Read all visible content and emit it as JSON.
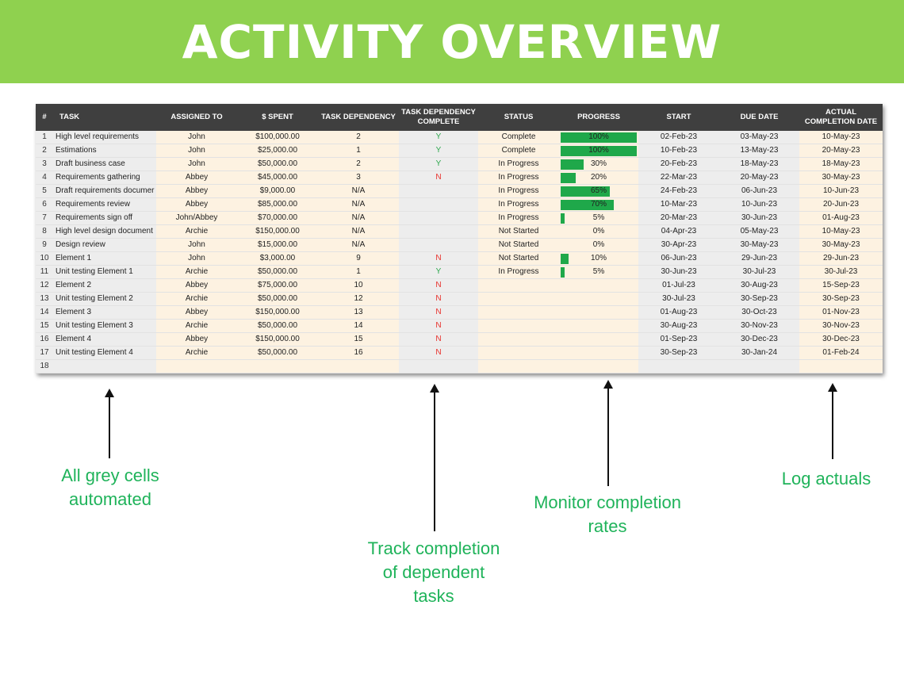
{
  "title": "ACTIVITY OVERVIEW",
  "columns": [
    "#",
    "TASK",
    "ASSIGNED TO",
    "$ SPENT",
    "TASK DEPENDENCY",
    "TASK DEPENDENCY COMPLETE",
    "STATUS",
    "PROGRESS",
    "START",
    "DUE DATE",
    "ACTUAL COMPLETION DATE"
  ],
  "rows": [
    {
      "n": "1",
      "task": "High level requirements",
      "assigned": "John",
      "spent": "$100,000.00",
      "dep": "2",
      "depc": "Y",
      "status": "Complete",
      "progress": "100%",
      "progress_value": 1.0,
      "start": "02-Feb-23",
      "due": "03-May-23",
      "actual": "10-May-23"
    },
    {
      "n": "2",
      "task": "Estimations",
      "assigned": "John",
      "spent": "$25,000.00",
      "dep": "1",
      "depc": "Y",
      "status": "Complete",
      "progress": "100%",
      "progress_value": 1.0,
      "start": "10-Feb-23",
      "due": "13-May-23",
      "actual": "20-May-23"
    },
    {
      "n": "3",
      "task": "Draft business case",
      "assigned": "John",
      "spent": "$50,000.00",
      "dep": "2",
      "depc": "Y",
      "status": "In Progress",
      "progress": "30%",
      "progress_value": 0.3,
      "start": "20-Feb-23",
      "due": "18-May-23",
      "actual": "18-May-23"
    },
    {
      "n": "4",
      "task": "Requirements gathering",
      "assigned": "Abbey",
      "spent": "$45,000.00",
      "dep": "3",
      "depc": "N",
      "status": "In Progress",
      "progress": "20%",
      "progress_value": 0.2,
      "start": "22-Mar-23",
      "due": "20-May-23",
      "actual": "30-May-23"
    },
    {
      "n": "5",
      "task": "Draft requirements documer",
      "assigned": "Abbey",
      "spent": "$9,000.00",
      "dep": "N/A",
      "depc": "",
      "status": "In Progress",
      "progress": "65%",
      "progress_value": 0.65,
      "start": "24-Feb-23",
      "due": "06-Jun-23",
      "actual": "10-Jun-23"
    },
    {
      "n": "6",
      "task": "Requirements review",
      "assigned": "Abbey",
      "spent": "$85,000.00",
      "dep": "N/A",
      "depc": "",
      "status": "In Progress",
      "progress": "70%",
      "progress_value": 0.7,
      "start": "10-Mar-23",
      "due": "10-Jun-23",
      "actual": "20-Jun-23"
    },
    {
      "n": "7",
      "task": "Requirements sign off",
      "assigned": "John/Abbey",
      "spent": "$70,000.00",
      "dep": "N/A",
      "depc": "",
      "status": "In Progress",
      "progress": "5%",
      "progress_value": 0.05,
      "start": "20-Mar-23",
      "due": "30-Jun-23",
      "actual": "01-Aug-23"
    },
    {
      "n": "8",
      "task": "High level design document",
      "assigned": "Archie",
      "spent": "$150,000.00",
      "dep": "N/A",
      "depc": "",
      "status": "Not Started",
      "progress": "0%",
      "progress_value": 0,
      "start": "04-Apr-23",
      "due": "05-May-23",
      "actual": "10-May-23"
    },
    {
      "n": "9",
      "task": "Design review",
      "assigned": "John",
      "spent": "$15,000.00",
      "dep": "N/A",
      "depc": "",
      "status": "Not Started",
      "progress": "0%",
      "progress_value": 0,
      "start": "30-Apr-23",
      "due": "30-May-23",
      "actual": "30-May-23"
    },
    {
      "n": "10",
      "task": "Element 1",
      "assigned": "John",
      "spent": "$3,000.00",
      "dep": "9",
      "depc": "N",
      "status": "Not Started",
      "progress": "10%",
      "progress_value": 0.1,
      "start": "06-Jun-23",
      "due": "29-Jun-23",
      "actual": "29-Jun-23"
    },
    {
      "n": "11",
      "task": "Unit testing Element 1",
      "assigned": "Archie",
      "spent": "$50,000.00",
      "dep": "1",
      "depc": "Y",
      "status": "In Progress",
      "progress": "5%",
      "progress_value": 0.05,
      "start": "30-Jun-23",
      "due": "30-Jul-23",
      "actual": "30-Jul-23"
    },
    {
      "n": "12",
      "task": "Element 2",
      "assigned": "Abbey",
      "spent": "$75,000.00",
      "dep": "10",
      "depc": "N",
      "status": "",
      "progress": "",
      "progress_value": null,
      "start": "01-Jul-23",
      "due": "30-Aug-23",
      "actual": "15-Sep-23"
    },
    {
      "n": "13",
      "task": "Unit testing Element 2",
      "assigned": "Archie",
      "spent": "$50,000.00",
      "dep": "12",
      "depc": "N",
      "status": "",
      "progress": "",
      "progress_value": null,
      "start": "30-Jul-23",
      "due": "30-Sep-23",
      "actual": "30-Sep-23"
    },
    {
      "n": "14",
      "task": "Element 3",
      "assigned": "Abbey",
      "spent": "$150,000.00",
      "dep": "13",
      "depc": "N",
      "status": "",
      "progress": "",
      "progress_value": null,
      "start": "01-Aug-23",
      "due": "30-Oct-23",
      "actual": "01-Nov-23"
    },
    {
      "n": "15",
      "task": "Unit testing Element 3",
      "assigned": "Archie",
      "spent": "$50,000.00",
      "dep": "14",
      "depc": "N",
      "status": "",
      "progress": "",
      "progress_value": null,
      "start": "30-Aug-23",
      "due": "30-Nov-23",
      "actual": "30-Nov-23"
    },
    {
      "n": "16",
      "task": "Element 4",
      "assigned": "Abbey",
      "spent": "$150,000.00",
      "dep": "15",
      "depc": "N",
      "status": "",
      "progress": "",
      "progress_value": null,
      "start": "01-Sep-23",
      "due": "30-Dec-23",
      "actual": "30-Dec-23"
    },
    {
      "n": "17",
      "task": "Unit testing Element 4",
      "assigned": "Archie",
      "spent": "$50,000.00",
      "dep": "16",
      "depc": "N",
      "status": "",
      "progress": "",
      "progress_value": null,
      "start": "30-Sep-23",
      "due": "30-Jan-24",
      "actual": "01-Feb-24"
    },
    {
      "n": "18",
      "task": "",
      "assigned": "",
      "spent": "",
      "dep": "",
      "depc": "",
      "status": "",
      "progress": "",
      "progress_value": null,
      "start": "",
      "due": "",
      "actual": ""
    }
  ],
  "callouts": {
    "grey": "All grey cells automated",
    "dependency": "Track completion of dependent tasks",
    "progress": "Monitor completion rates",
    "actuals": "Log actuals"
  },
  "colors": {
    "banner": "#8fd14f",
    "header": "#3f3f3f",
    "progress_bar": "#1fa84a",
    "callout_text": "#1fb35a",
    "yes": "#2fa84f",
    "no": "#e8302b"
  }
}
